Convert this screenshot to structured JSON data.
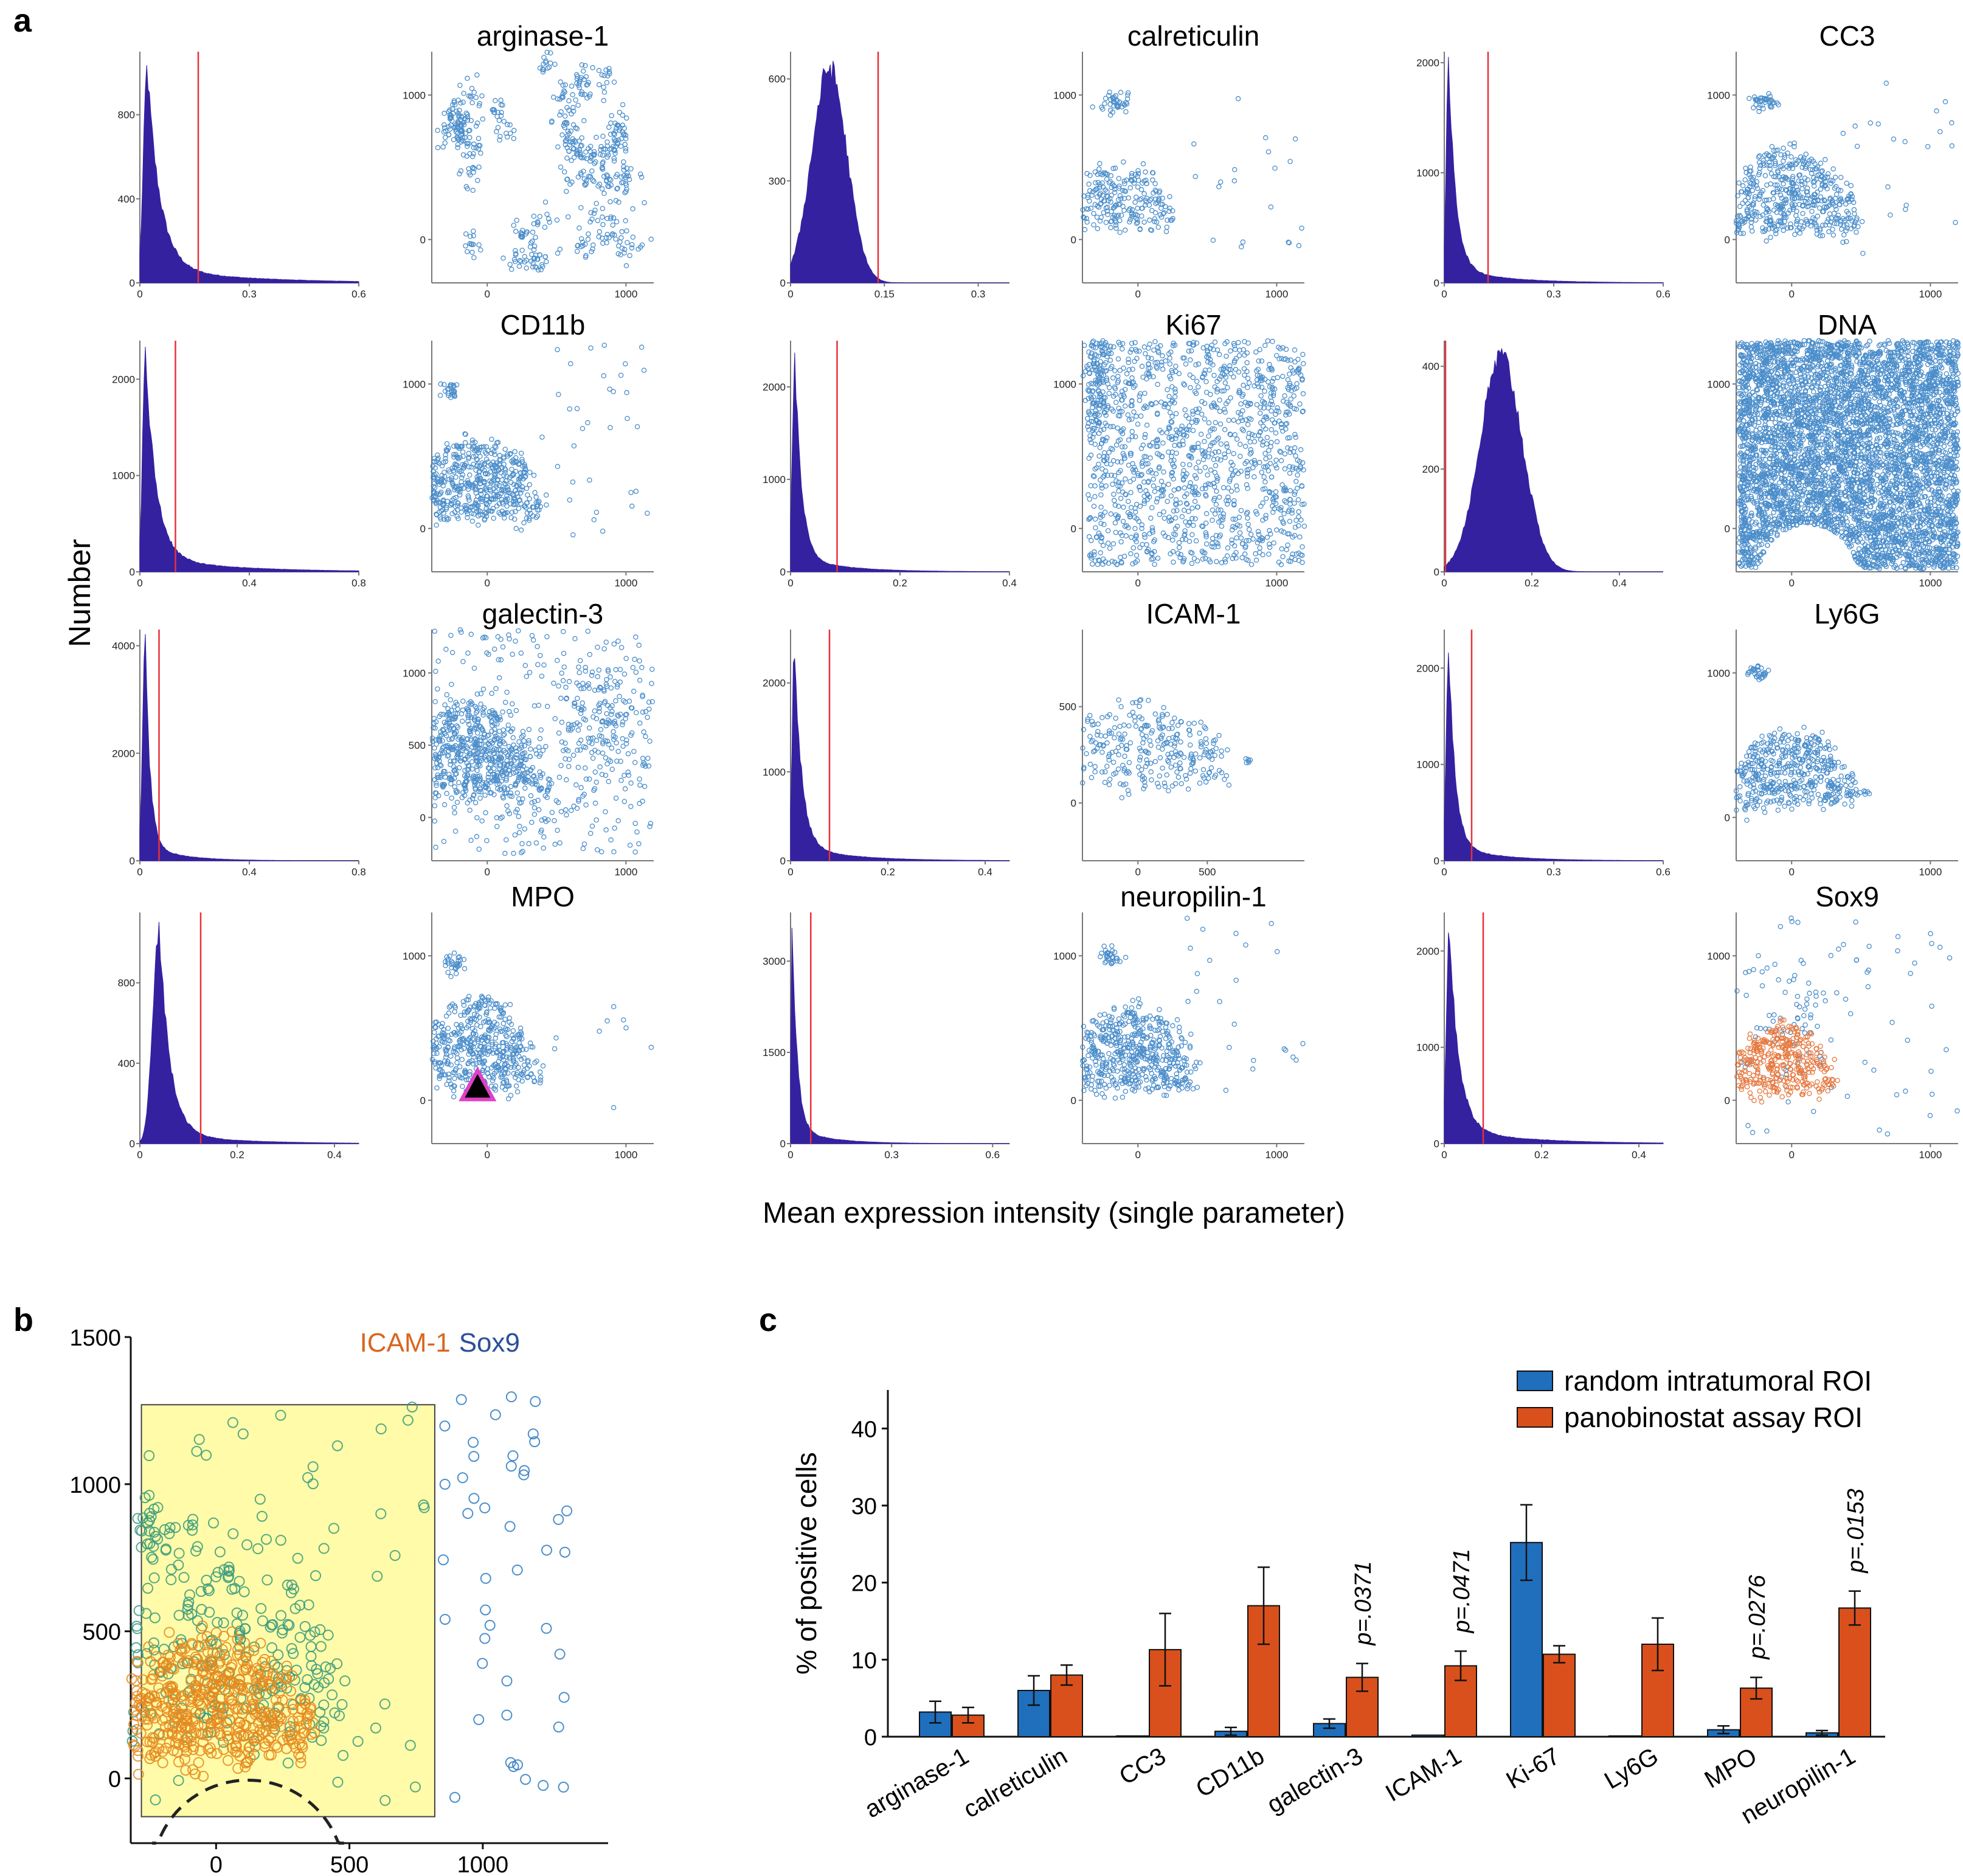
{
  "figure": {
    "panel_a_label": "a",
    "panel_b_label": "b",
    "panel_c_label": "c",
    "a_ylabel": "Number",
    "a_xlabel": "Mean expression intensity (single parameter)"
  },
  "colors": {
    "hist_fill": "#3421a0",
    "threshold": "#e8313a",
    "scatter_blue": "#2d7bc2",
    "scatter_orange": "#e2621f",
    "bar_blue": "#1f6fbd",
    "bar_orange": "#d9501c",
    "icam_orange": "#e58a1e",
    "sox9_teal": "#3a9a7c",
    "gate_yellow": "#fffba8",
    "title_orange": "#d9661f",
    "title_blue": "#2c4f9a"
  },
  "chart_data": [
    {
      "panel": "a",
      "type": "histogram-grid",
      "markers": [
        {
          "name": "arginase-1",
          "hist": {
            "peak": 0.02,
            "spread": 0.035,
            "shape": "decay",
            "xmax": 0.6,
            "xticks": [
              "0",
              "0.3",
              "0.6"
            ],
            "yticks": [
              0,
              400,
              800
            ],
            "ymax": 1100,
            "threshold": 0.16
          },
          "scatter": {
            "yticks": [
              0,
              1000
            ],
            "xticks": [
              0,
              1000
            ],
            "pattern": "arginase"
          }
        },
        {
          "name": "calreticulin",
          "hist": {
            "peak": 0.062,
            "spread": 0.028,
            "shape": "bell",
            "xmax": 0.35,
            "xticks": [
              "0",
              "0.15",
              "0.3"
            ],
            "yticks": [
              0,
              300,
              600
            ],
            "ymax": 680,
            "threshold": 0.14
          },
          "scatter": {
            "yticks": [
              0,
              1000
            ],
            "xticks": [
              0,
              1000
            ],
            "pattern": "calreticulin"
          }
        },
        {
          "name": "CC3",
          "hist": {
            "peak": 0.012,
            "spread": 0.02,
            "shape": "decay",
            "xmax": 0.6,
            "xticks": [
              "0",
              "0.3",
              "0.6"
            ],
            "yticks": [
              0,
              1000,
              2000
            ],
            "ymax": 2100,
            "threshold": 0.12
          },
          "scatter": {
            "yticks": [
              0,
              1000
            ],
            "xticks": [
              0,
              1000
            ],
            "pattern": "cc3"
          }
        },
        {
          "name": "CD11b",
          "hist": {
            "peak": 0.02,
            "spread": 0.04,
            "shape": "decay",
            "xmax": 0.8,
            "xticks": [
              "0",
              "0.4",
              "0.8"
            ],
            "yticks": [
              0,
              1000,
              2000
            ],
            "ymax": 2400,
            "threshold": 0.13
          },
          "scatter": {
            "yticks": [
              0,
              1000
            ],
            "xticks": [
              0,
              1000
            ],
            "pattern": "cd11b"
          }
        },
        {
          "name": "Ki67",
          "hist": {
            "peak": 0.008,
            "spread": 0.012,
            "shape": "decay",
            "xmax": 0.4,
            "xticks": [
              "0",
              "0.2",
              "0.4"
            ],
            "yticks": [
              0,
              1000,
              2000
            ],
            "ymax": 2500,
            "threshold": 0.085
          },
          "scatter": {
            "yticks": [
              0,
              1000
            ],
            "xticks": [
              0,
              1000
            ],
            "pattern": "ki67"
          }
        },
        {
          "name": "DNA",
          "hist": {
            "peak": 0.13,
            "spread": 0.048,
            "shape": "bell",
            "xmax": 0.5,
            "xticks": [
              "0",
              "0.2",
              "0.4"
            ],
            "yticks": [
              0,
              200,
              400
            ],
            "ymax": 450,
            "threshold": 0.0
          },
          "scatter": {
            "yticks": [
              0,
              1000
            ],
            "xticks": [
              0,
              1000
            ],
            "pattern": "dna"
          }
        },
        {
          "name": "galectin-3",
          "hist": {
            "peak": 0.02,
            "spread": 0.018,
            "shape": "decay",
            "xmax": 0.8,
            "xticks": [
              "0",
              "0.4",
              "0.8"
            ],
            "yticks": [
              0,
              2000,
              4000
            ],
            "ymax": 4300,
            "threshold": 0.07
          },
          "scatter": {
            "yticks": [
              0,
              500,
              1000
            ],
            "xticks": [
              0,
              1000
            ],
            "pattern": "galectin"
          }
        },
        {
          "name": "ICAM-1",
          "hist": {
            "peak": 0.008,
            "spread": 0.015,
            "shape": "decay",
            "xmax": 0.45,
            "xticks": [
              "0",
              "0.2",
              "0.4"
            ],
            "yticks": [
              0,
              1000,
              2000
            ],
            "ymax": 2600,
            "threshold": 0.08
          },
          "scatter": {
            "yticks": [
              0,
              500
            ],
            "xticks": [
              0,
              500
            ],
            "pattern": "icam"
          }
        },
        {
          "name": "Ly6G",
          "hist": {
            "peak": 0.012,
            "spread": 0.018,
            "shape": "decay",
            "xmax": 0.6,
            "xticks": [
              "0",
              "0.3",
              "0.6"
            ],
            "yticks": [
              0,
              1000,
              2000
            ],
            "ymax": 2400,
            "threshold": 0.075
          },
          "scatter": {
            "yticks": [
              0,
              1000
            ],
            "xticks": [
              0,
              1000
            ],
            "pattern": "ly6g"
          }
        },
        {
          "name": "MPO",
          "hist": {
            "peak": 0.04,
            "spread": 0.022,
            "shape": "bell-decay",
            "xmax": 0.45,
            "xticks": [
              "0",
              "0.2",
              "0.4"
            ],
            "yticks": [
              0,
              400,
              800
            ],
            "ymax": 1150,
            "threshold": 0.125
          },
          "scatter": {
            "yticks": [
              0,
              1000
            ],
            "xticks": [
              0,
              1000
            ],
            "pattern": "mpo"
          }
        },
        {
          "name": "neuropilin-1",
          "hist": {
            "peak": 0.005,
            "spread": 0.015,
            "shape": "decay",
            "xmax": 0.65,
            "xticks": [
              "0",
              "0.3",
              "0.6"
            ],
            "yticks": [
              0,
              1500,
              3000
            ],
            "ymax": 3800,
            "threshold": 0.06
          },
          "scatter": {
            "yticks": [
              0,
              1000
            ],
            "xticks": [
              0,
              1000
            ],
            "pattern": "neuropilin"
          }
        },
        {
          "name": "Sox9",
          "hist": {
            "peak": 0.01,
            "spread": 0.02,
            "shape": "decay",
            "xmax": 0.45,
            "xticks": [
              "0",
              "0.2",
              "0.4"
            ],
            "yticks": [
              0,
              1000,
              2000
            ],
            "ymax": 2400,
            "threshold": 0.08
          },
          "scatter": {
            "yticks": [
              0,
              1000
            ],
            "xticks": [
              0,
              1000
            ],
            "pattern": "sox9"
          }
        }
      ]
    },
    {
      "panel": "b",
      "type": "scatter",
      "title_parts": [
        "ICAM-1",
        "Sox9"
      ],
      "xlim": [
        -320,
        1470
      ],
      "ylim": [
        -220,
        1500
      ],
      "xticks": [
        0,
        500,
        1000
      ],
      "yticks": [
        0,
        500,
        1000,
        1500
      ],
      "gate": {
        "x0": -280,
        "x1": 820,
        "y0": -130,
        "y1": 1270
      },
      "arc": {
        "center_x": 120,
        "center_y": -330,
        "radius": 360
      }
    },
    {
      "panel": "c",
      "type": "bar",
      "ylabel": "% of positive cells",
      "ylim": [
        0,
        45
      ],
      "yticks": [
        0,
        10,
        20,
        30,
        40
      ],
      "categories": [
        "arginase-1",
        "calreticulin",
        "CC3",
        "CD11b",
        "galectin-3",
        "ICAM-1",
        "Ki-67",
        "Ly6G",
        "MPO",
        "neuropilin-1"
      ],
      "series": [
        {
          "name": "random intratumoral ROI",
          "values": [
            3.2,
            6.0,
            0.1,
            0.7,
            1.7,
            0.2,
            25.2,
            0.1,
            0.9,
            0.5
          ],
          "errors": [
            1.4,
            1.9,
            0.0,
            0.5,
            0.6,
            0.0,
            4.9,
            0.0,
            0.5,
            0.3
          ]
        },
        {
          "name": "panobinostat assay ROI",
          "values": [
            2.8,
            8.0,
            11.3,
            17.0,
            7.7,
            9.2,
            10.7,
            12.0,
            6.3,
            16.7
          ],
          "errors": [
            1.0,
            1.3,
            4.7,
            5.0,
            1.8,
            1.9,
            1.1,
            3.4,
            1.4,
            2.2
          ]
        }
      ],
      "annotations": [
        {
          "category": "galectin-3",
          "text": "p=.0371"
        },
        {
          "category": "ICAM-1",
          "text": "p=.0471"
        },
        {
          "category": "MPO",
          "text": "p=.0276"
        },
        {
          "category": "neuropilin-1",
          "text": "p=.0153"
        }
      ]
    }
  ]
}
